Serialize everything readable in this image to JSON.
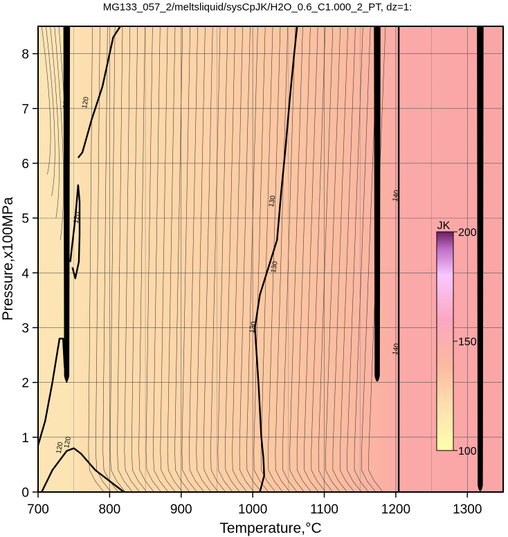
{
  "chart_data": {
    "type": "heatmap",
    "title": "MG133_057_2/meltsliquid/sysCpJK/H2O_0.6_C1.000_2_PT, dz=1:",
    "xlabel": "Temperature,°C",
    "ylabel": "Pressure,x100MPa",
    "xlim": [
      700,
      1350
    ],
    "ylim": [
      0,
      8.5
    ],
    "x_ticks": [
      "700",
      "800",
      "900",
      "1000",
      "1100",
      "1200",
      "1300"
    ],
    "y_ticks": [
      "0",
      "1",
      "2",
      "3",
      "4",
      "5",
      "6",
      "7",
      "8"
    ],
    "grid": true,
    "z_range": [
      100,
      200
    ],
    "colors": {
      "low": "#ffffaa",
      "fill_near_700": "#fde0b0",
      "fill_near_1000": "#fcc8a0",
      "fill_near_1150": "#fbb8a0",
      "fill_near_1350": "#fba8a8"
    },
    "colorbar": {
      "title": "JK",
      "ticks": [
        "100",
        "150",
        "200"
      ],
      "values": [
        100,
        150,
        200
      ]
    },
    "contour_labels": [
      {
        "text": "120",
        "x": 742,
        "y": 7.1
      },
      {
        "text": "120",
        "x": 769,
        "y": 7.1
      },
      {
        "text": "120",
        "x": 757,
        "y": 5.0
      },
      {
        "text": "120",
        "x": 733,
        "y": 0.8
      },
      {
        "text": "120",
        "x": 744,
        "y": 0.9
      },
      {
        "text": "130",
        "x": 1030,
        "y": 5.3
      },
      {
        "text": "130",
        "x": 1033,
        "y": 4.1
      },
      {
        "text": "130",
        "x": 1003,
        "y": 3.0
      },
      {
        "text": "140",
        "x": 1203,
        "y": 5.4
      },
      {
        "text": "140",
        "x": 1203,
        "y": 2.6
      }
    ],
    "bold_contours": [
      {
        "name": "left-loop-upper",
        "points": [
          [
            756,
            6.1
          ],
          [
            762,
            6.2
          ],
          [
            775,
            6.8
          ],
          [
            790,
            7.4
          ],
          [
            805,
            8.3
          ],
          [
            815,
            8.5
          ]
        ]
      },
      {
        "name": "left-loop-lower",
        "points": [
          [
            745,
            4.2
          ],
          [
            752,
            5.0
          ],
          [
            756,
            5.6
          ],
          [
            758,
            5.3
          ],
          [
            758,
            4.7
          ],
          [
            757,
            4.2
          ],
          [
            752,
            3.9
          ],
          [
            748,
            4.1
          ]
        ]
      },
      {
        "name": "left-base",
        "points": [
          [
            705,
            0.0
          ],
          [
            720,
            0.4
          ],
          [
            740,
            0.75
          ],
          [
            750,
            0.8
          ],
          [
            760,
            0.7
          ],
          [
            780,
            0.4
          ],
          [
            800,
            0.2
          ],
          [
            820,
            0.0
          ]
        ]
      },
      {
        "name": "left-lower-loop",
        "points": [
          [
            700,
            0.85
          ],
          [
            710,
            1.3
          ],
          [
            720,
            2.0
          ],
          [
            730,
            2.8
          ],
          [
            735,
            2.8
          ],
          [
            737,
            2.3
          ],
          [
            740,
            2.0
          ]
        ]
      },
      {
        "name": "c130",
        "points": [
          [
            1010,
            0.0
          ],
          [
            1016,
            0.3
          ],
          [
            1015,
            0.6
          ],
          [
            1012,
            1.0
          ],
          [
            1010,
            1.5
          ],
          [
            1008,
            2.0
          ],
          [
            1003,
            3.0
          ],
          [
            1010,
            3.6
          ],
          [
            1022,
            4.1
          ],
          [
            1034,
            4.6
          ],
          [
            1040,
            5.5
          ],
          [
            1046,
            6.3
          ],
          [
            1052,
            7.2
          ],
          [
            1058,
            8.0
          ],
          [
            1062,
            8.5
          ]
        ]
      },
      {
        "name": "c140",
        "points": [
          [
            1204,
            0.0
          ],
          [
            1204,
            8.5
          ]
        ]
      }
    ],
    "spikes": [
      {
        "name": "spike-740",
        "x": 740,
        "ybottom": 2.0,
        "ytop": 8.5
      },
      {
        "name": "spike-1174",
        "x": 1174,
        "ybottom": 2.0,
        "ytop": 8.5
      },
      {
        "name": "spike-1318",
        "x": 1318,
        "ybottom": 0.0,
        "ytop": 8.5
      }
    ]
  }
}
